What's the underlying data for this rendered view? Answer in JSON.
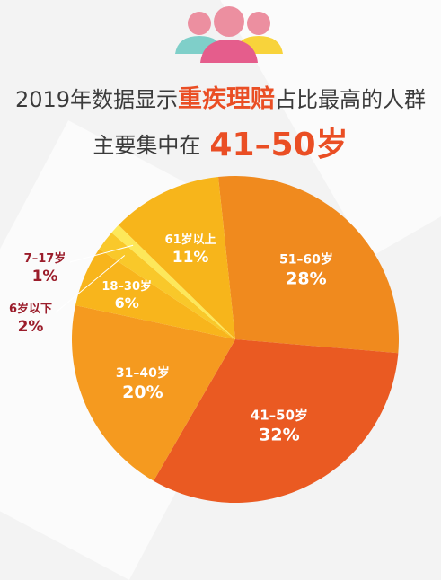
{
  "header": {
    "line1_prefix": "2019年数据显示",
    "line1_highlight": "重疾理赔",
    "line1_suffix": "占比最高的人群",
    "line2_prefix": "主要集中在",
    "line2_highlight": "41–50岁"
  },
  "icons": [
    "people-group-icon"
  ],
  "chart_data": {
    "type": "pie",
    "slices": [
      {
        "label": "51–60岁",
        "value": 28,
        "value_label": "28%",
        "color": "#f08a1e"
      },
      {
        "label": "41–50岁",
        "value": 32,
        "value_label": "32%",
        "color": "#ea5a22"
      },
      {
        "label": "31–40岁",
        "value": 20,
        "value_label": "20%",
        "color": "#f59a1f"
      },
      {
        "label": "18–30岁",
        "value": 6,
        "value_label": "6%",
        "color": "#f8b51c"
      },
      {
        "label": "6岁以下",
        "value": 2,
        "value_label": "2%",
        "color": "#f9c82a"
      },
      {
        "label": "7–17岁",
        "value": 1,
        "value_label": "1%",
        "color": "#fde85a"
      },
      {
        "label": "61岁以上",
        "value": 11,
        "value_label": "11%",
        "color": "#f7b51b"
      }
    ],
    "inside_text_color": "#ffffff",
    "outside_text_color": "#9b1d2b"
  }
}
